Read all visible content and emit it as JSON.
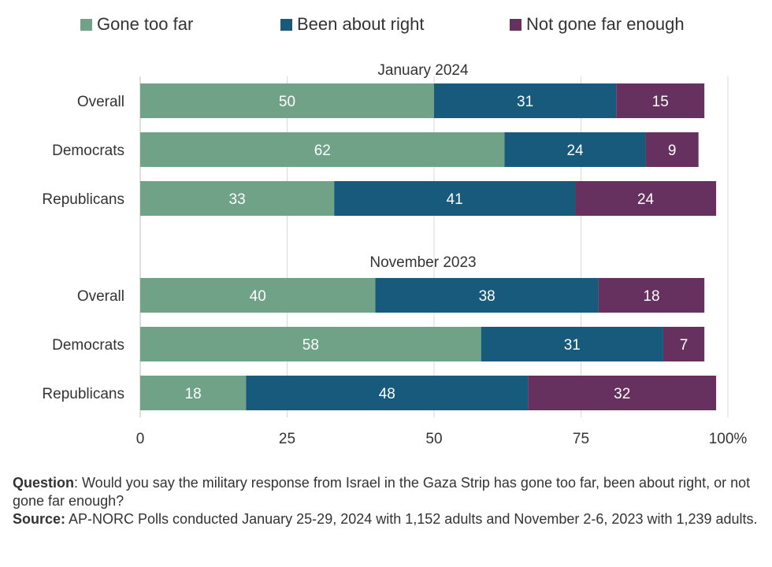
{
  "legend": [
    {
      "label": "Gone too far",
      "color": "#6fa287"
    },
    {
      "label": "Been about right",
      "color": "#175a7b"
    },
    {
      "label": "Not gone far enough",
      "color": "#66305f"
    }
  ],
  "notes": {
    "question_label": "Question",
    "question_text": ": Would you say the military response from Israel in the Gaza Strip has gone too far, been about right, or not gone far enough?",
    "source_label": "Source:",
    "source_text": " AP-NORC Polls conducted January 25-29, 2024 with 1,152 adults and November 2-6, 2023 with 1,239 adults."
  },
  "chart_data": {
    "type": "bar",
    "orientation": "horizontal",
    "stacked": true,
    "xlim": [
      0,
      100
    ],
    "x_ticks": [
      "0",
      "25",
      "50",
      "75",
      "100%"
    ],
    "grid": true,
    "legend_position": "top",
    "series": [
      {
        "name": "Gone too far",
        "color": "#6fa287"
      },
      {
        "name": "Been about right",
        "color": "#175a7b"
      },
      {
        "name": "Not gone far enough",
        "color": "#66305f"
      }
    ],
    "groups": [
      {
        "title": "January 2024",
        "rows": [
          {
            "label": "Overall",
            "values": [
              50,
              31,
              15
            ]
          },
          {
            "label": "Democrats",
            "values": [
              62,
              24,
              9
            ]
          },
          {
            "label": "Republicans",
            "values": [
              33,
              41,
              24
            ]
          }
        ]
      },
      {
        "title": "November 2023",
        "rows": [
          {
            "label": "Overall",
            "values": [
              40,
              38,
              18
            ]
          },
          {
            "label": "Democrats",
            "values": [
              58,
              31,
              7
            ]
          },
          {
            "label": "Republicans",
            "values": [
              18,
              48,
              32
            ]
          }
        ]
      }
    ]
  }
}
